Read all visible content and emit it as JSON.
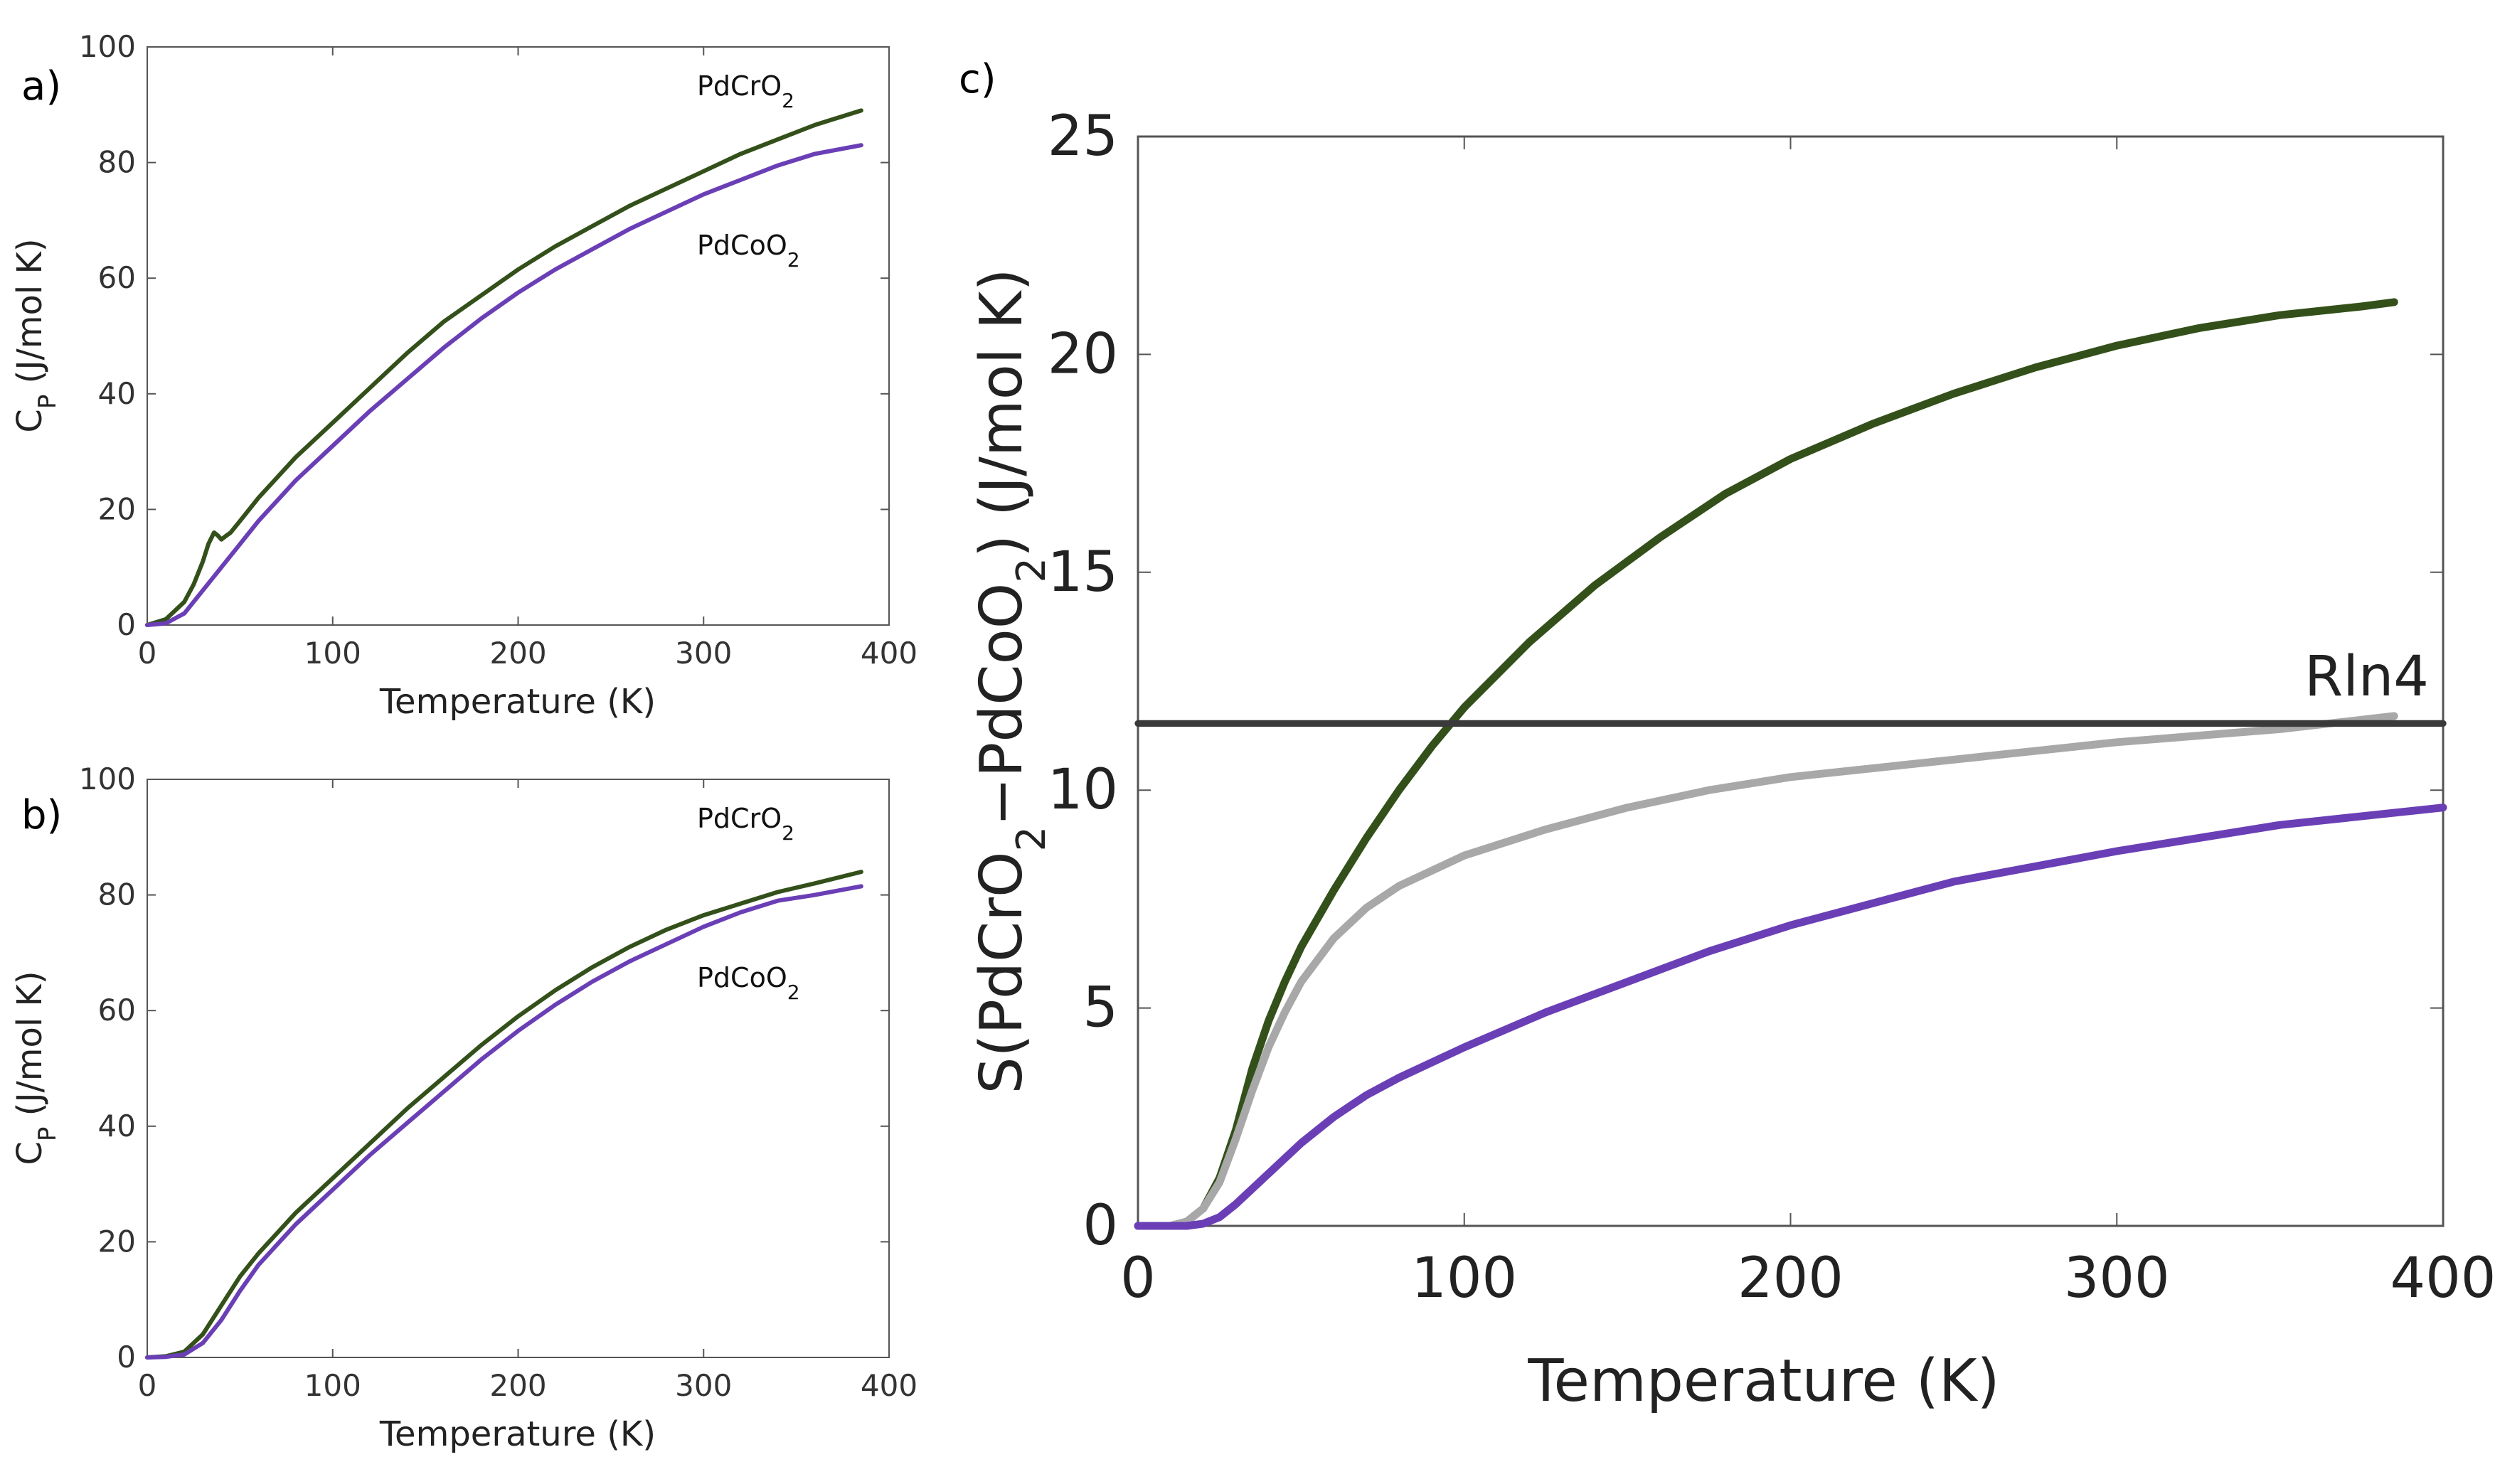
{
  "colors": {
    "pdcro2": "#33501a",
    "pdcoo2": "#6a3fb6",
    "difference": "#a8a8a8",
    "rln4": "#3a3a3a",
    "axis": "#555555"
  },
  "chart_data": [
    {
      "panel": "a)",
      "type": "line",
      "xlabel": "Temperature (K)",
      "ylabel": "C",
      "ylabel_sub": "P",
      "ylabel_rest": " (J/mol K)",
      "xlim": [
        0,
        400
      ],
      "ylim": [
        0,
        100
      ],
      "xticks": [
        "0",
        "100",
        "200",
        "300",
        "400"
      ],
      "yticks": [
        "0",
        "20",
        "40",
        "60",
        "80",
        "100"
      ],
      "series": [
        {
          "name": "PdCrO2",
          "label_main": "PdCrO",
          "label_sub": "2",
          "x": [
            0,
            10,
            20,
            25,
            30,
            33,
            36,
            38,
            40,
            42,
            45,
            50,
            60,
            80,
            100,
            120,
            140,
            160,
            180,
            200,
            220,
            240,
            260,
            280,
            300,
            320,
            340,
            360,
            385
          ],
          "y": [
            0,
            1,
            4,
            7,
            11,
            14,
            16,
            15.5,
            14.8,
            15.3,
            16,
            18,
            22,
            29,
            35,
            41,
            47,
            52.5,
            57,
            61.5,
            65.5,
            69,
            72.5,
            75.5,
            78.5,
            81.5,
            84,
            86.5,
            89
          ]
        },
        {
          "name": "PdCoO2",
          "label_main": "PdCoO",
          "label_sub": "2",
          "x": [
            0,
            10,
            20,
            30,
            40,
            50,
            60,
            80,
            100,
            120,
            140,
            160,
            180,
            200,
            220,
            240,
            260,
            280,
            300,
            320,
            340,
            360,
            385
          ],
          "y": [
            0,
            0.3,
            2,
            6,
            10,
            14,
            18,
            25,
            31,
            37,
            42.5,
            48,
            53,
            57.5,
            61.5,
            65,
            68.5,
            71.5,
            74.5,
            77,
            79.5,
            81.5,
            83
          ]
        }
      ]
    },
    {
      "panel": "b)",
      "type": "line",
      "xlabel": "Temperature (K)",
      "ylabel": "C",
      "ylabel_sub": "P",
      "ylabel_rest": " (J/mol K)",
      "xlim": [
        0,
        400
      ],
      "ylim": [
        0,
        100
      ],
      "xticks": [
        "0",
        "100",
        "200",
        "300",
        "400"
      ],
      "yticks": [
        "0",
        "20",
        "40",
        "60",
        "80",
        "100"
      ],
      "series": [
        {
          "name": "PdCrO2",
          "label_main": "PdCrO",
          "label_sub": "2",
          "x": [
            0,
            10,
            20,
            30,
            40,
            50,
            60,
            80,
            100,
            120,
            140,
            160,
            180,
            200,
            220,
            240,
            260,
            280,
            300,
            320,
            340,
            360,
            385
          ],
          "y": [
            0,
            0.2,
            1,
            4,
            9,
            14,
            18,
            25,
            31,
            37,
            43,
            48.5,
            54,
            59,
            63.5,
            67.5,
            71,
            74,
            76.5,
            78.5,
            80.5,
            82,
            84
          ]
        },
        {
          "name": "PdCoO2",
          "label_main": "PdCoO",
          "label_sub": "2",
          "x": [
            0,
            10,
            20,
            30,
            40,
            50,
            60,
            80,
            100,
            120,
            140,
            160,
            180,
            200,
            220,
            240,
            260,
            280,
            300,
            320,
            340,
            360,
            385
          ],
          "y": [
            0,
            0.1,
            0.5,
            2.5,
            6.5,
            11.5,
            16,
            23,
            29,
            35,
            40.5,
            46,
            51.5,
            56.5,
            61,
            65,
            68.5,
            71.5,
            74.5,
            77,
            79,
            80,
            81.5
          ]
        }
      ]
    },
    {
      "panel": "c)",
      "type": "line",
      "xlabel": "Temperature (K)",
      "ylabel": "S(PdCrO",
      "ylabel_sub1": "2",
      "ylabel_mid": "−PdCoO",
      "ylabel_sub2": "2",
      "ylabel_rest": ")  (J/mol K)",
      "xlim": [
        0,
        400
      ],
      "ylim": [
        0,
        25
      ],
      "xticks": [
        "0",
        "100",
        "200",
        "300",
        "400"
      ],
      "yticks": [
        "0",
        "5",
        "10",
        "15",
        "20",
        "25"
      ],
      "annotation": "Rln4",
      "series": [
        {
          "name": "PdCrO2",
          "x": [
            0,
            10,
            15,
            20,
            25,
            30,
            35,
            40,
            45,
            50,
            60,
            70,
            80,
            90,
            100,
            120,
            140,
            160,
            180,
            200,
            225,
            250,
            275,
            300,
            325,
            350,
            375,
            385
          ],
          "y": [
            0,
            0,
            0.1,
            0.4,
            1.1,
            2.2,
            3.6,
            4.7,
            5.6,
            6.4,
            7.7,
            8.9,
            10.0,
            11.0,
            11.9,
            13.4,
            14.7,
            15.8,
            16.8,
            17.6,
            18.4,
            19.1,
            19.7,
            20.2,
            20.6,
            20.9,
            21.1,
            21.2
          ]
        },
        {
          "name": "PdCrO2-PdCoO2",
          "x": [
            0,
            10,
            15,
            20,
            25,
            30,
            35,
            40,
            45,
            50,
            60,
            70,
            80,
            100,
            125,
            150,
            175,
            200,
            250,
            300,
            350,
            385
          ],
          "y": [
            0,
            0,
            0.1,
            0.4,
            1.0,
            2.0,
            3.1,
            4.1,
            4.9,
            5.6,
            6.6,
            7.3,
            7.8,
            8.5,
            9.1,
            9.6,
            10.0,
            10.3,
            10.7,
            11.1,
            11.4,
            11.7
          ]
        },
        {
          "name": "PdCoO2",
          "x": [
            0,
            10,
            15,
            20,
            25,
            30,
            40,
            50,
            60,
            70,
            80,
            100,
            125,
            150,
            175,
            200,
            250,
            300,
            350,
            400
          ],
          "y": [
            0,
            0,
            0,
            0.05,
            0.2,
            0.5,
            1.2,
            1.9,
            2.5,
            3.0,
            3.4,
            4.1,
            4.9,
            5.6,
            6.3,
            6.9,
            7.9,
            8.6,
            9.2,
            9.6
          ]
        },
        {
          "name": "Rln4",
          "x": [
            0,
            400
          ],
          "y": [
            11.53,
            11.53
          ]
        }
      ]
    }
  ]
}
